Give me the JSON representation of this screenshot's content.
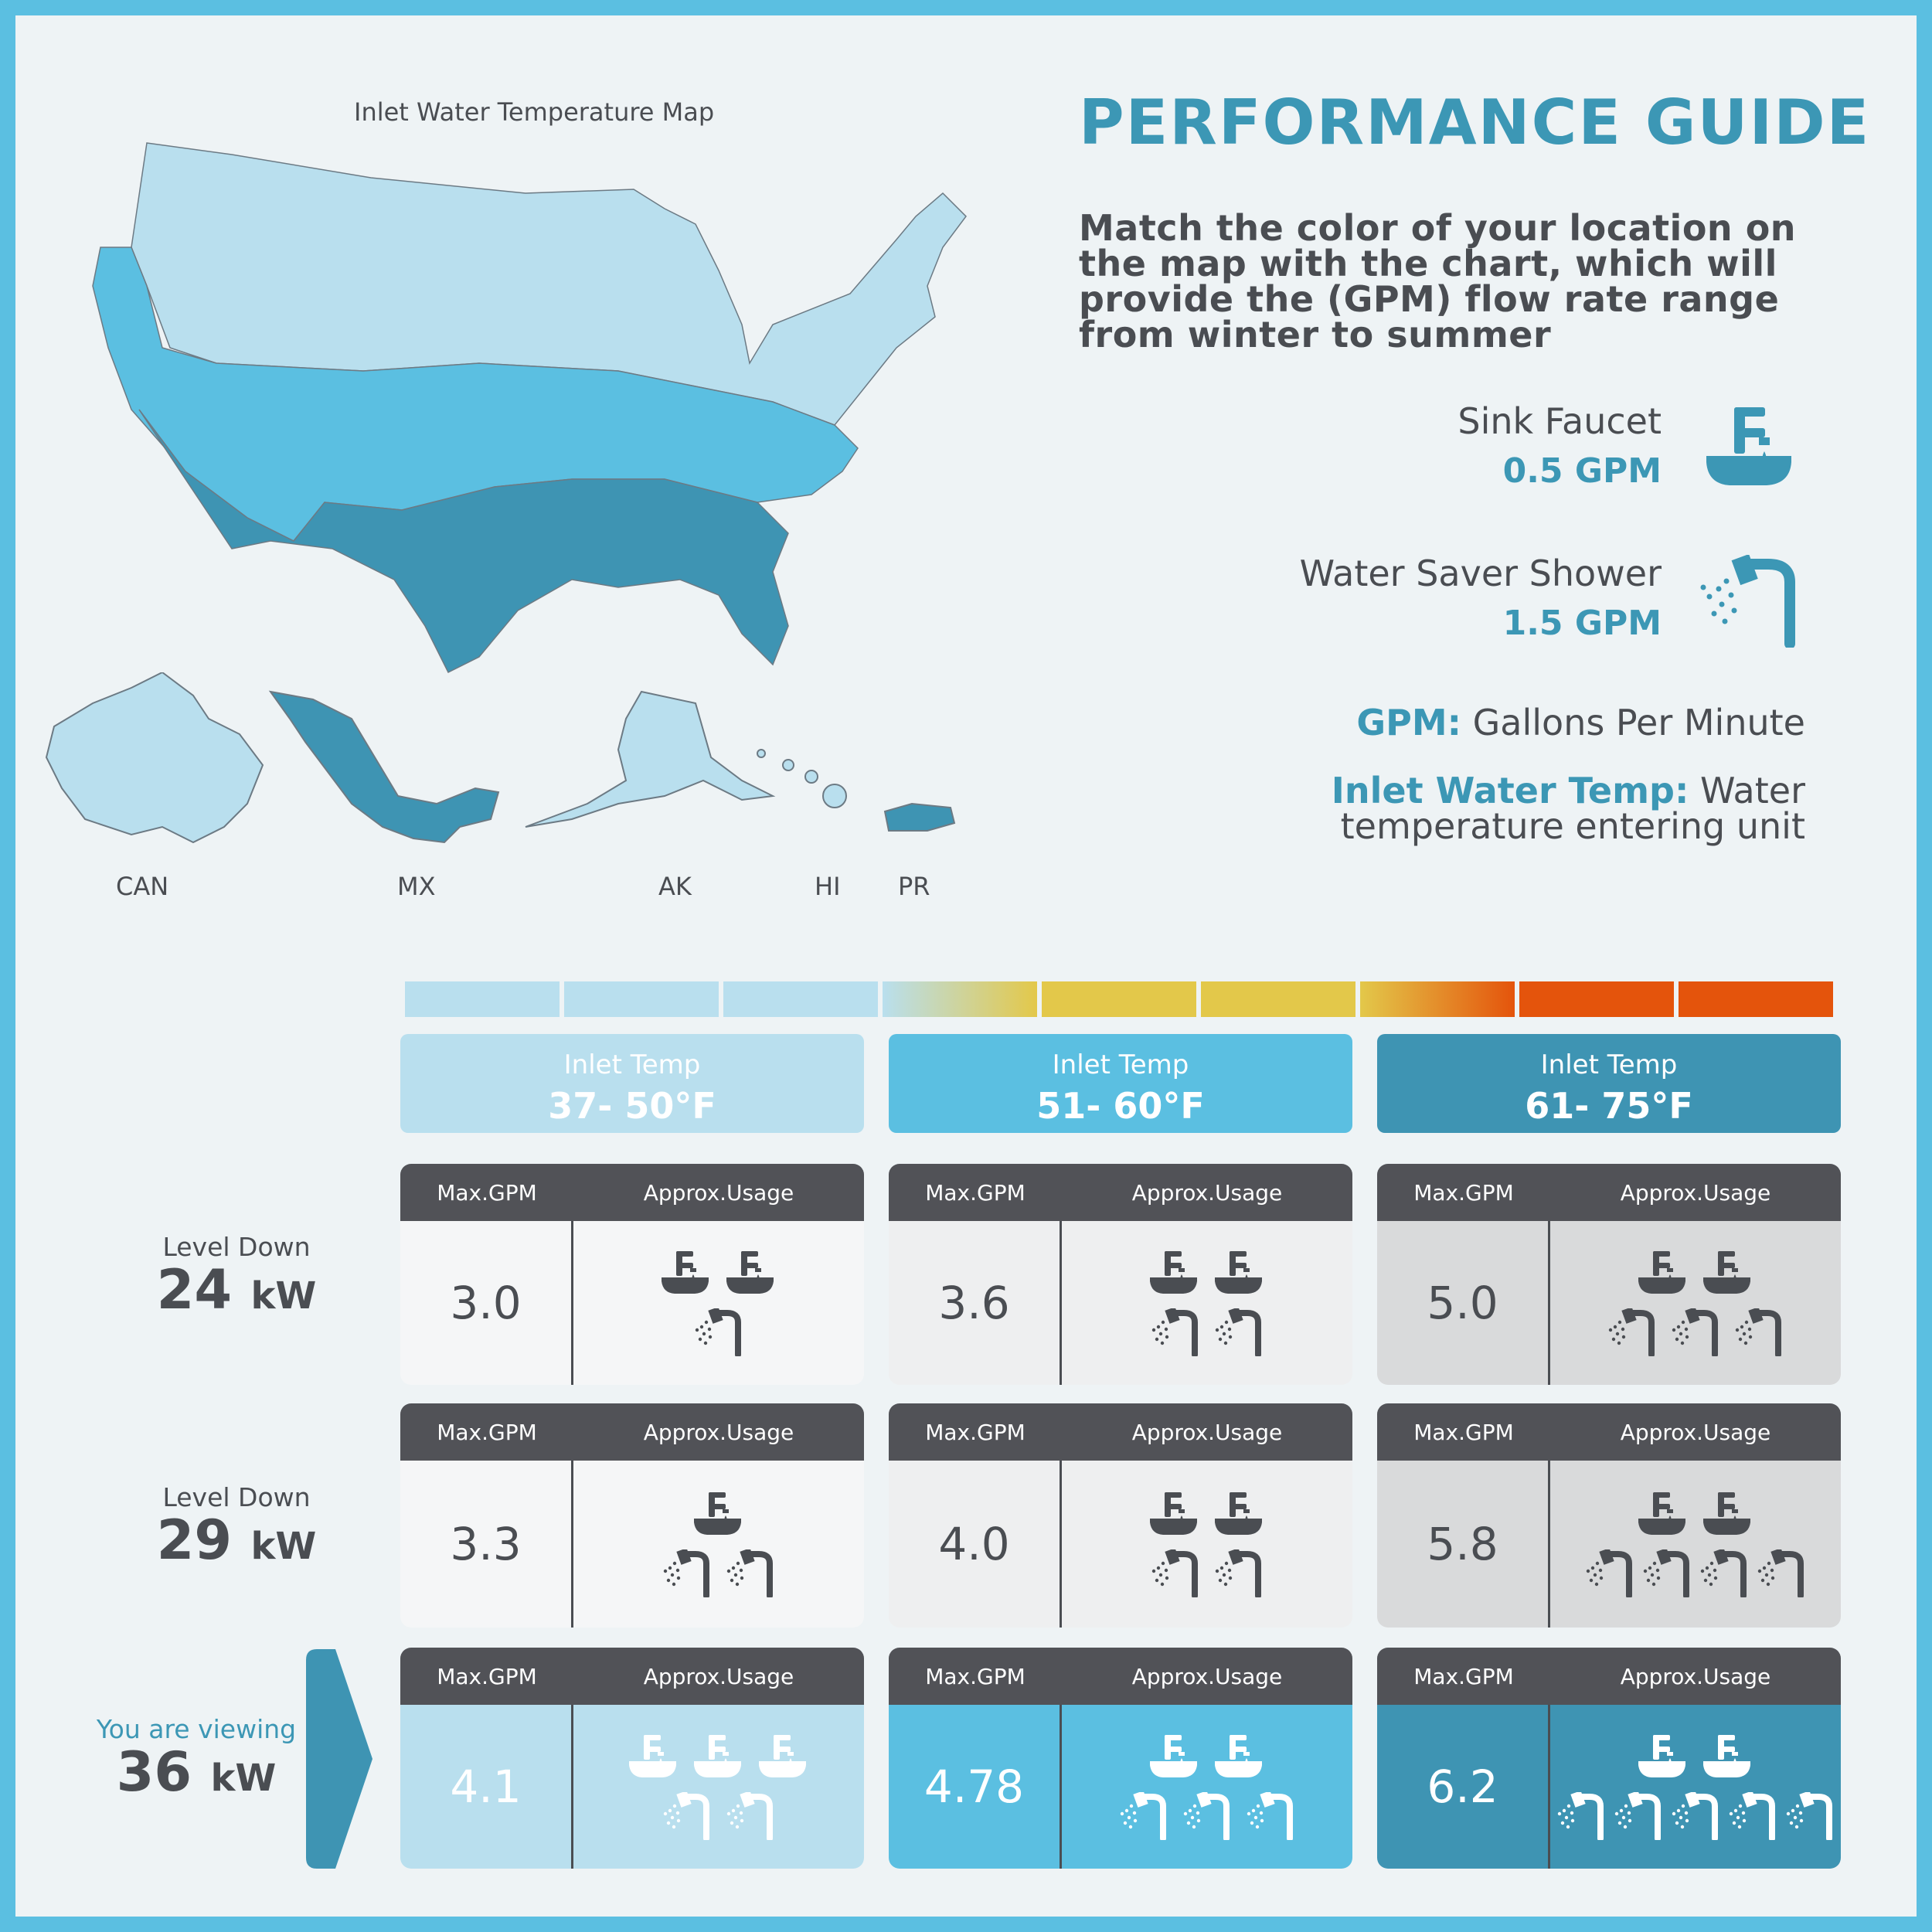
{
  "map": {
    "title": "Inlet Water Temperature Map",
    "labels": [
      "CAN",
      "MX",
      "AK",
      "HI",
      "PR"
    ]
  },
  "guide": {
    "title": "PERFORMANCE GUIDE",
    "description": "Match the color of your location on the map with the chart, which will provide the (GPM) flow rate range from winter to summer"
  },
  "fixtures": {
    "sink": {
      "name": "Sink Faucet",
      "rate": "0.5 GPM",
      "icon": "sink-faucet-icon"
    },
    "shower": {
      "name": "Water Saver Shower",
      "rate": "1.5 GPM",
      "icon": "shower-icon"
    }
  },
  "definitions": {
    "gpm_key": "GPM:",
    "gpm_value": "Gallons Per Minute",
    "temp_key": "Inlet Water Temp:",
    "temp_value_1": "Water",
    "temp_value_2": "temperature entering unit"
  },
  "colors": {
    "cold": "#b9dfee",
    "mid": "#5bbfe1",
    "warm": "#3e94b3",
    "dark": "#515257",
    "accent": "#3c97b5",
    "yellow": "#e3c84a",
    "orange": "#e4540c"
  },
  "temp_ranges": [
    {
      "label": "Inlet Temp",
      "range": "37- 50°F"
    },
    {
      "label": "Inlet Temp",
      "range": "51- 60°F"
    },
    {
      "label": "Inlet Temp",
      "range": "61- 75°F"
    }
  ],
  "card_header": {
    "gpm": "Max.GPM",
    "usage": "Approx.Usage"
  },
  "levels": [
    {
      "label": "Level Down",
      "kw": "24",
      "unit": "kW",
      "cells": [
        {
          "gpm": "3.0",
          "sinks": 2,
          "showers": 1
        },
        {
          "gpm": "3.6",
          "sinks": 2,
          "showers": 2
        },
        {
          "gpm": "5.0",
          "sinks": 2,
          "showers": 3
        }
      ]
    },
    {
      "label": "Level Down",
      "kw": "29",
      "unit": "kW",
      "cells": [
        {
          "gpm": "3.3",
          "sinks": 1,
          "showers": 2
        },
        {
          "gpm": "4.0",
          "sinks": 2,
          "showers": 2
        },
        {
          "gpm": "5.8",
          "sinks": 2,
          "showers": 4
        }
      ]
    },
    {
      "label": "You are viewing",
      "kw": "36",
      "unit": "kW",
      "cells": [
        {
          "gpm": "4.1",
          "sinks": 3,
          "showers": 2
        },
        {
          "gpm": "4.78",
          "sinks": 2,
          "showers": 3
        },
        {
          "gpm": "6.2",
          "sinks": 2,
          "showers": 5
        }
      ]
    }
  ]
}
